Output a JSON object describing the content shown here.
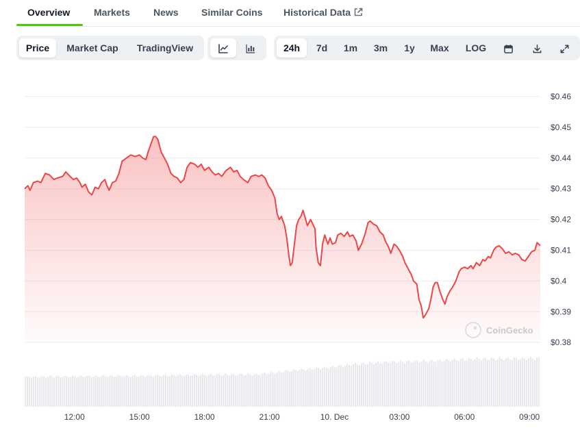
{
  "nav": {
    "tabs": [
      "Overview",
      "Markets",
      "News",
      "Similar Coins",
      "Historical Data"
    ],
    "active": "Overview"
  },
  "toolbar": {
    "view_tabs": [
      "Price",
      "Market Cap",
      "TradingView"
    ],
    "active_view": "Price",
    "chart_icons": [
      "line-chart-icon",
      "candlestick-chart-icon"
    ],
    "ranges": [
      "24h",
      "7d",
      "1m",
      "3m",
      "1y",
      "Max",
      "LOG"
    ],
    "active_range": "24h",
    "tool_icons": [
      "calendar-icon",
      "download-icon",
      "expand-icon"
    ]
  },
  "watermark": "CoinGecko",
  "colors": {
    "line": "#ef4444",
    "accent": "#4bcc00",
    "volume": "#e5e7eb"
  },
  "chart_data": {
    "type": "area",
    "y_ticks": [
      "$0.46",
      "$0.45",
      "$0.44",
      "$0.43",
      "$0.42",
      "$0.41",
      "$0.4",
      "$0.39",
      "$0.38"
    ],
    "x_ticks": [
      "12:00",
      "15:00",
      "18:00",
      "21:00",
      "10. Dec",
      "03:00",
      "06:00",
      "09:00"
    ],
    "x_range_hours": [
      9.7,
      33.5
    ],
    "ylim": [
      0.38,
      0.46
    ],
    "grid": true,
    "series": [
      {
        "price": [
          [
            9.7,
            0.43
          ],
          [
            9.85,
            0.431
          ],
          [
            9.95,
            0.4295
          ],
          [
            10.1,
            0.432
          ],
          [
            10.3,
            0.4325
          ],
          [
            10.45,
            0.432
          ],
          [
            10.65,
            0.435
          ],
          [
            10.85,
            0.4345
          ],
          [
            11.05,
            0.433
          ],
          [
            11.2,
            0.4335
          ],
          [
            11.45,
            0.434
          ],
          [
            11.6,
            0.4355
          ],
          [
            11.8,
            0.434
          ],
          [
            11.95,
            0.433
          ],
          [
            12.1,
            0.4335
          ],
          [
            12.25,
            0.432
          ],
          [
            12.35,
            0.4305
          ],
          [
            12.5,
            0.4315
          ],
          [
            12.65,
            0.429
          ],
          [
            12.8,
            0.428
          ],
          [
            12.95,
            0.4305
          ],
          [
            13.1,
            0.43
          ],
          [
            13.25,
            0.432
          ],
          [
            13.4,
            0.433
          ],
          [
            13.5,
            0.431
          ],
          [
            13.6,
            0.4295
          ],
          [
            13.75,
            0.432
          ],
          [
            13.9,
            0.4325
          ],
          [
            14.05,
            0.435
          ],
          [
            14.2,
            0.439
          ],
          [
            14.4,
            0.44
          ],
          [
            14.6,
            0.441
          ],
          [
            14.8,
            0.4405
          ],
          [
            15.0,
            0.441
          ],
          [
            15.15,
            0.44
          ],
          [
            15.3,
            0.4395
          ],
          [
            15.4,
            0.442
          ],
          [
            15.5,
            0.444
          ],
          [
            15.65,
            0.447
          ],
          [
            15.75,
            0.447
          ],
          [
            15.85,
            0.446
          ],
          [
            16.0,
            0.442
          ],
          [
            16.15,
            0.44
          ],
          [
            16.3,
            0.438
          ],
          [
            16.45,
            0.435
          ],
          [
            16.6,
            0.434
          ],
          [
            16.75,
            0.4335
          ],
          [
            16.9,
            0.432
          ],
          [
            17.05,
            0.433
          ],
          [
            17.2,
            0.437
          ],
          [
            17.35,
            0.4385
          ],
          [
            17.55,
            0.438
          ],
          [
            17.7,
            0.437
          ],
          [
            17.85,
            0.438
          ],
          [
            18.0,
            0.436
          ],
          [
            18.2,
            0.437
          ],
          [
            18.35,
            0.4355
          ],
          [
            18.5,
            0.4345
          ],
          [
            18.65,
            0.435
          ],
          [
            18.8,
            0.434
          ],
          [
            19.0,
            0.436
          ],
          [
            19.2,
            0.437
          ],
          [
            19.35,
            0.4355
          ],
          [
            19.5,
            0.436
          ],
          [
            19.65,
            0.434
          ],
          [
            19.8,
            0.433
          ],
          [
            20.0,
            0.432
          ],
          [
            20.15,
            0.434
          ],
          [
            20.35,
            0.4345
          ],
          [
            20.5,
            0.434
          ],
          [
            20.65,
            0.4345
          ],
          [
            20.8,
            0.4335
          ],
          [
            20.95,
            0.431
          ],
          [
            21.1,
            0.4295
          ],
          [
            21.25,
            0.427
          ],
          [
            21.35,
            0.422
          ],
          [
            21.45,
            0.42
          ],
          [
            21.55,
            0.421
          ],
          [
            21.7,
            0.418
          ],
          [
            21.8,
            0.414
          ],
          [
            21.9,
            0.408
          ],
          [
            21.97,
            0.405
          ],
          [
            22.05,
            0.406
          ],
          [
            22.15,
            0.412
          ],
          [
            22.25,
            0.418
          ],
          [
            22.35,
            0.42
          ],
          [
            22.45,
            0.421
          ],
          [
            22.55,
            0.423
          ],
          [
            22.65,
            0.4205
          ],
          [
            22.75,
            0.418
          ],
          [
            22.9,
            0.42
          ],
          [
            23.0,
            0.4185
          ],
          [
            23.1,
            0.417
          ],
          [
            23.15,
            0.411
          ],
          [
            23.25,
            0.406
          ],
          [
            23.35,
            0.405
          ],
          [
            23.45,
            0.412
          ],
          [
            23.55,
            0.415
          ],
          [
            23.7,
            0.412
          ],
          [
            23.8,
            0.414
          ],
          [
            23.9,
            0.412
          ],
          [
            24.05,
            0.4125
          ],
          [
            24.15,
            0.415
          ],
          [
            24.3,
            0.4155
          ],
          [
            24.45,
            0.4145
          ],
          [
            24.6,
            0.416
          ],
          [
            24.7,
            0.4145
          ],
          [
            24.85,
            0.415
          ],
          [
            25.0,
            0.413
          ],
          [
            25.1,
            0.41
          ],
          [
            25.25,
            0.412
          ],
          [
            25.4,
            0.415
          ],
          [
            25.55,
            0.419
          ],
          [
            25.65,
            0.4195
          ],
          [
            25.8,
            0.4185
          ],
          [
            25.95,
            0.418
          ],
          [
            26.1,
            0.416
          ],
          [
            26.25,
            0.415
          ],
          [
            26.35,
            0.413
          ],
          [
            26.5,
            0.411
          ],
          [
            26.6,
            0.409
          ],
          [
            26.75,
            0.412
          ],
          [
            26.85,
            0.4115
          ],
          [
            27.0,
            0.41
          ],
          [
            27.15,
            0.408
          ],
          [
            27.25,
            0.406
          ],
          [
            27.4,
            0.404
          ],
          [
            27.55,
            0.402
          ],
          [
            27.65,
            0.4
          ],
          [
            27.8,
            0.399
          ],
          [
            27.9,
            0.394
          ],
          [
            28.0,
            0.392
          ],
          [
            28.1,
            0.388
          ],
          [
            28.2,
            0.389
          ],
          [
            28.35,
            0.391
          ],
          [
            28.45,
            0.394
          ],
          [
            28.55,
            0.398
          ],
          [
            28.65,
            0.3995
          ],
          [
            28.75,
            0.3995
          ],
          [
            28.85,
            0.397
          ],
          [
            29.0,
            0.394
          ],
          [
            29.1,
            0.3925
          ],
          [
            29.2,
            0.395
          ],
          [
            29.35,
            0.397
          ],
          [
            29.45,
            0.398
          ],
          [
            29.6,
            0.4
          ],
          [
            29.75,
            0.403
          ],
          [
            29.85,
            0.404
          ],
          [
            30.0,
            0.4045
          ],
          [
            30.15,
            0.404
          ],
          [
            30.3,
            0.405
          ],
          [
            30.4,
            0.404
          ],
          [
            30.55,
            0.406
          ],
          [
            30.7,
            0.405
          ],
          [
            30.85,
            0.407
          ],
          [
            30.95,
            0.4065
          ],
          [
            31.1,
            0.408
          ],
          [
            31.2,
            0.4075
          ],
          [
            31.35,
            0.41
          ],
          [
            31.45,
            0.411
          ],
          [
            31.6,
            0.4115
          ],
          [
            31.75,
            0.4105
          ],
          [
            31.9,
            0.409
          ],
          [
            32.05,
            0.4095
          ],
          [
            32.2,
            0.4085
          ],
          [
            32.35,
            0.409
          ],
          [
            32.5,
            0.4085
          ],
          [
            32.65,
            0.407
          ],
          [
            32.8,
            0.4065
          ],
          [
            32.95,
            0.408
          ],
          [
            33.1,
            0.4095
          ],
          [
            33.25,
            0.41
          ],
          [
            33.35,
            0.4125
          ],
          [
            33.5,
            0.4115
          ]
        ],
        "volume_relative": [
          [
            9.7,
            0.56
          ],
          [
            12.0,
            0.57
          ],
          [
            15.0,
            0.58
          ],
          [
            18.0,
            0.6
          ],
          [
            20.5,
            0.61
          ],
          [
            22.0,
            0.68
          ],
          [
            23.5,
            0.73
          ],
          [
            25.0,
            0.8
          ],
          [
            26.5,
            0.84
          ],
          [
            28.5,
            0.86
          ],
          [
            30.5,
            0.9
          ],
          [
            33.5,
            0.91
          ]
        ]
      }
    ]
  }
}
